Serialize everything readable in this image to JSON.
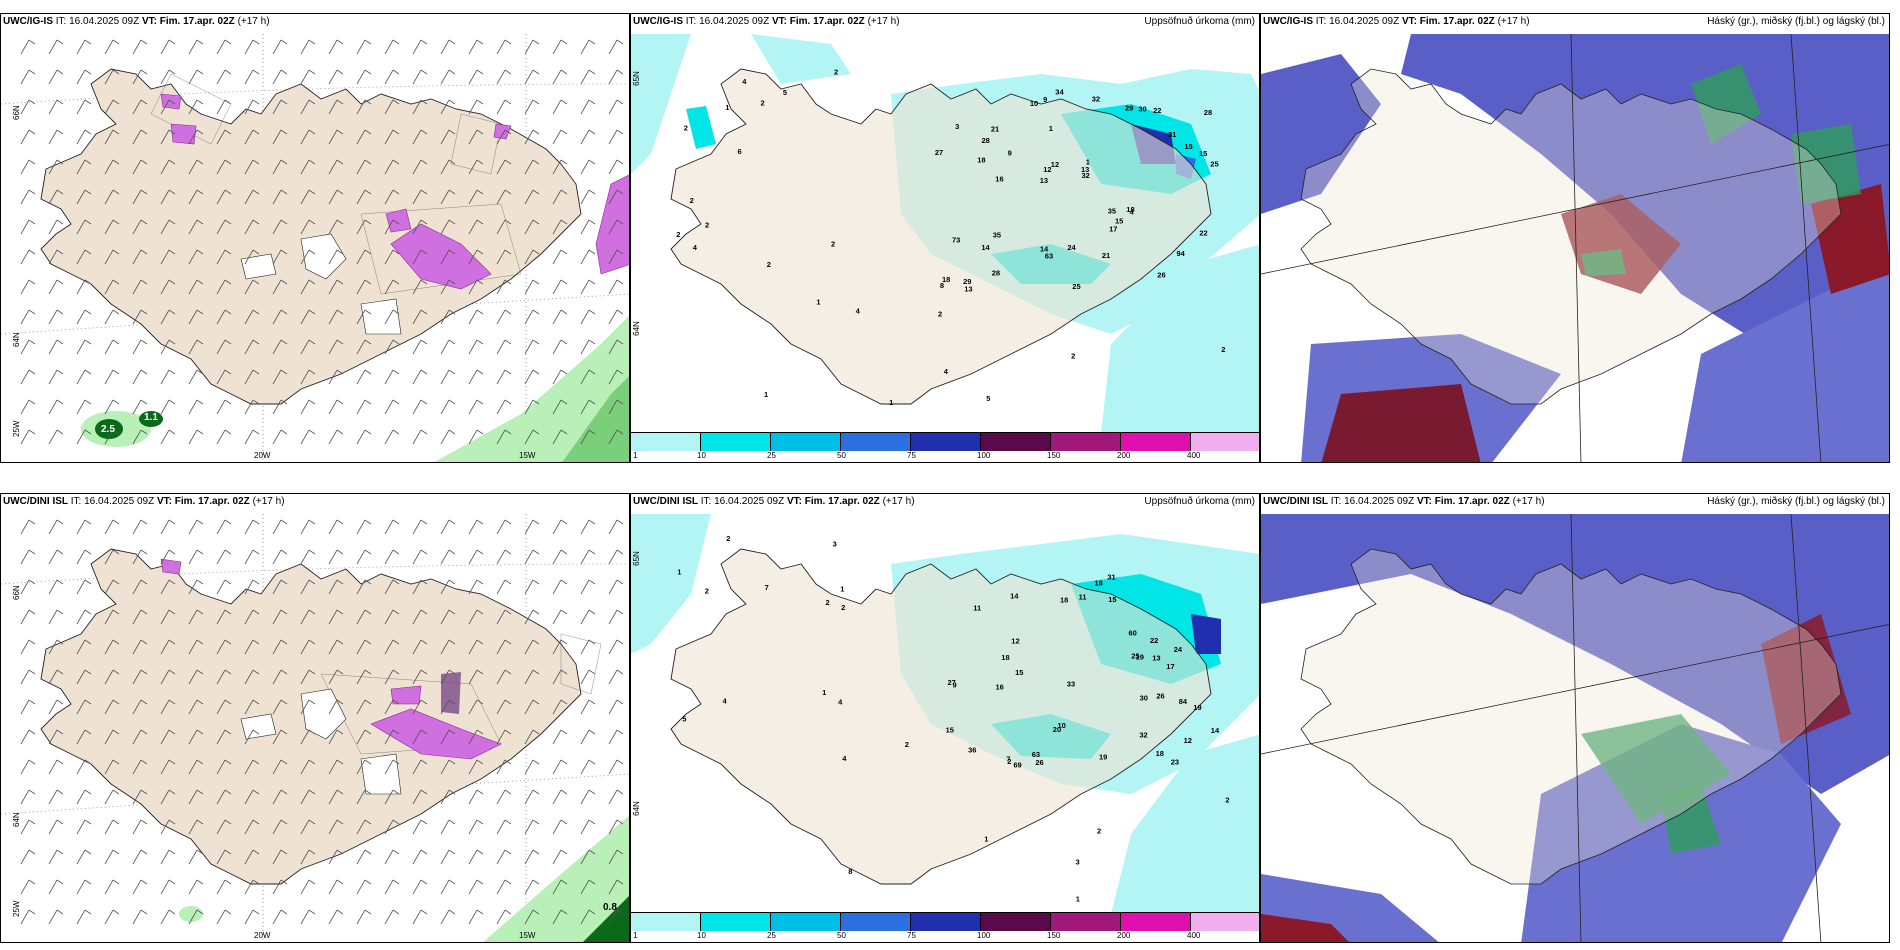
{
  "panels": {
    "row1_wind": {
      "model": "UWC/IG-IS",
      "it_prefix": "IT:",
      "it_value": "16.04.2025 09Z",
      "vt_prefix": "VT:",
      "vt_value": "Fim. 17.apr. 02Z",
      "lead": "(+17 h)",
      "lat_labels": [
        "66N",
        "64N",
        "25W"
      ],
      "lon_labels": [
        "20W",
        "15W"
      ],
      "values": [
        "2.5",
        "1.1"
      ]
    },
    "row1_precip": {
      "model": "UWC/IG-IS",
      "it_prefix": "IT:",
      "it_value": "16.04.2025 09Z",
      "vt_prefix": "VT:",
      "vt_value": "Fim. 17.apr. 02Z",
      "lead": "(+17 h)",
      "right_title": "Uppsöfnuð úrkoma (mm)",
      "lat_labels": [
        "65N",
        "64N"
      ]
    },
    "row1_cloud": {
      "model": "UWC/IG-IS",
      "it_prefix": "IT:",
      "it_value": "16.04.2025 09Z",
      "vt_prefix": "VT:",
      "vt_value": "Fim. 17.apr. 02Z",
      "lead": "(+17 h)",
      "right_title": "Háský (gr.), miðský (fj.bl.) og lágský (bl.)"
    },
    "row2_wind": {
      "model": "UWC/DINI ISL",
      "it_prefix": "IT:",
      "it_value": "16.04.2025 09Z",
      "vt_prefix": "VT:",
      "vt_value": "Fim. 17.apr. 02Z",
      "lead": "(+17 h)",
      "lat_labels": [
        "66N",
        "64N",
        "25W"
      ],
      "lon_labels": [
        "20W",
        "15W"
      ],
      "values": [
        "0.8"
      ]
    },
    "row2_precip": {
      "model": "UWC/DINI ISL",
      "it_prefix": "IT:",
      "it_value": "16.04.2025 09Z",
      "vt_prefix": "VT:",
      "vt_value": "Fim. 17.apr. 02Z",
      "lead": "(+17 h)",
      "right_title": "Uppsöfnuð úrkoma (mm)",
      "lat_labels": [
        "65N",
        "64N"
      ]
    },
    "row2_cloud": {
      "model": "UWC/DINI ISL",
      "it_prefix": "IT:",
      "it_value": "16.04.2025 09Z",
      "vt_prefix": "VT:",
      "vt_value": "Fim. 17.apr. 02Z",
      "lead": "(+17 h)",
      "right_title": "Háský (gr.), miðský (fj.bl.) og lágský (bl.)"
    }
  },
  "colorbar": {
    "labels": [
      "1",
      "10",
      "25",
      "50",
      "75",
      "100",
      "150",
      "200",
      "400"
    ],
    "colors": [
      "#b3f5f5",
      "#00e5e5",
      "#00bfe6",
      "#2e6fe0",
      "#1f2fb0",
      "#5a0a4a",
      "#a0187a",
      "#e010b0",
      "#f0b0f0"
    ]
  },
  "precip_numbers_row1": [
    "2",
    "2",
    "2",
    "6",
    "5",
    "4",
    "4",
    "2",
    "2",
    "1",
    "2",
    "2",
    "1",
    "1",
    "4",
    "3",
    "9",
    "25",
    "35",
    "15",
    "13",
    "14",
    "12",
    "21",
    "29",
    "35",
    "26",
    "94",
    "18",
    "25",
    "9",
    "18",
    "17",
    "28",
    "15",
    "13",
    "18",
    "63",
    "32",
    "73",
    "31",
    "28",
    "15",
    "21",
    "14",
    "13",
    "8",
    "24",
    "22",
    "34",
    "16",
    "27",
    "28",
    "30",
    "29",
    "32",
    "10",
    "12",
    "22",
    "4",
    "1",
    "2",
    "4",
    "1",
    "2",
    "1",
    "2",
    "2",
    "5"
  ],
  "precip_numbers_row2": [
    "1",
    "1",
    "4",
    "7",
    "5",
    "2",
    "2",
    "4",
    "3",
    "2",
    "2",
    "1",
    "17",
    "26",
    "15",
    "11",
    "12",
    "14",
    "10",
    "24",
    "27",
    "9",
    "19",
    "25",
    "63",
    "20",
    "18",
    "15",
    "60",
    "14",
    "16",
    "32",
    "69",
    "33",
    "84",
    "18",
    "19",
    "18",
    "23",
    "15",
    "26",
    "13",
    "11",
    "18",
    "19",
    "30",
    "36",
    "31",
    "12",
    "22",
    "8",
    "1",
    "2",
    "2",
    "3",
    "2",
    "2",
    "4",
    "1",
    "7"
  ],
  "colors": {
    "land": "#efe2d2",
    "ocean_light": "#b3f5f5",
    "ocean_cyan": "#00e5e5",
    "high_cloud": "#8a1a2a",
    "mid_cloud": "#2e9e5a",
    "low_cloud": "#4a5fc8",
    "snow_magenta": "#d070e0",
    "rain_green": "#a0e0a0"
  }
}
